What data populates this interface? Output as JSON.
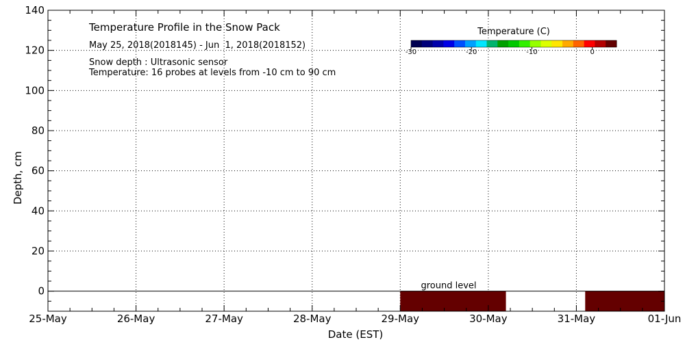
{
  "chart_data": {
    "type": "heatmap",
    "title": "Temperature Profile in the Snow Pack",
    "subtitle": "May 25, 2018(2018145) - Jun  1, 2018(2018152)",
    "notes": [
      "Snow depth : Ultrasonic sensor",
      "Temperature: 16 probes at levels from -10 cm to 90 cm"
    ],
    "xlabel": "Date (EST)",
    "ylabel": "Depth, cm",
    "x_ticks": [
      "25-May",
      "26-May",
      "27-May",
      "28-May",
      "29-May",
      "30-May",
      "31-May",
      "01-Jun"
    ],
    "xlim_days": [
      0,
      7
    ],
    "ylim": [
      -10,
      140
    ],
    "y_ticks": [
      0,
      20,
      40,
      60,
      80,
      100,
      120,
      140
    ],
    "grid": true,
    "ground_label": "ground level",
    "ground_level": 0,
    "colorbar": {
      "title": "Temperature (C)",
      "range": [
        -30,
        4
      ],
      "tick_values": [
        -30,
        -20,
        -10,
        0
      ],
      "tick_labels": [
        "-30",
        "-20",
        "-10",
        "0"
      ],
      "colors": [
        "#000050",
        "#00007a",
        "#0000aa",
        "#0000e6",
        "#0050ff",
        "#00a0ff",
        "#00e6ff",
        "#00b46e",
        "#00a000",
        "#00c800",
        "#32f000",
        "#96ff00",
        "#dcff00",
        "#ffe600",
        "#ffaa00",
        "#ff6400",
        "#ff0000",
        "#b40000",
        "#640000"
      ]
    },
    "temperature_blocks": [
      {
        "start_day": 4.0,
        "end_day": 5.2,
        "depth_top": 0,
        "depth_bottom": -10,
        "color": "#640000"
      },
      {
        "start_day": 6.1,
        "end_day": 7.0,
        "depth_top": 0,
        "depth_bottom": -10,
        "color": "#640000"
      }
    ]
  }
}
